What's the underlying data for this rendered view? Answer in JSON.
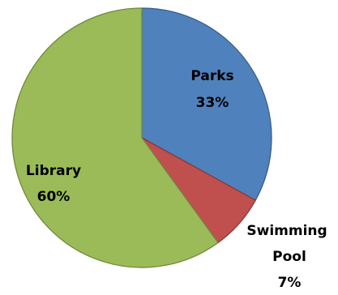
{
  "chart_data": {
    "type": "pie",
    "slices": [
      {
        "label": "Parks",
        "value": 33,
        "value_label": "33%",
        "color": "#4F81BD",
        "border": "#385D8A"
      },
      {
        "label": "Swimming Pool",
        "value": 7,
        "value_label": "7%",
        "color": "#C0504D",
        "border": "#8C3836"
      },
      {
        "label": "Library",
        "value": 60,
        "value_label": "60%",
        "color": "#9BBB59",
        "border": "#71893F"
      }
    ],
    "start_angle": "12 o'clock",
    "direction": "clockwise"
  }
}
